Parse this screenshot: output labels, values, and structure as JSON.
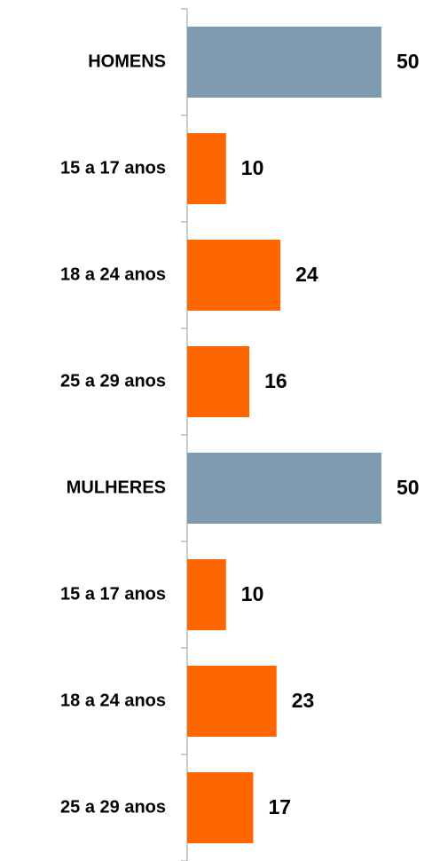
{
  "chart_data": {
    "type": "bar",
    "orientation": "horizontal",
    "categories": [
      "HOMENS",
      "15 a 17 anos",
      "18 a 24 anos",
      "25 a 29 anos",
      "MULHERES",
      "15 a 17 anos",
      "18 a 24 anos",
      "25 a 29 anos"
    ],
    "values": [
      50,
      10,
      24,
      16,
      50,
      10,
      23,
      17
    ],
    "colors": [
      "#7f9bb0",
      "#ff6600",
      "#ff6600",
      "#ff6600",
      "#7f9bb0",
      "#ff6600",
      "#ff6600",
      "#ff6600"
    ]
  }
}
